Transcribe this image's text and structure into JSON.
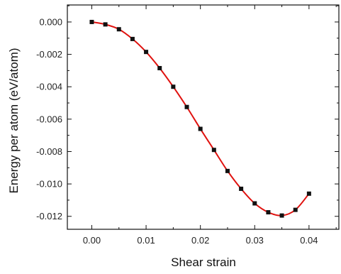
{
  "chart_data": {
    "type": "scatter",
    "title": "",
    "xlabel": "Shear strain",
    "ylabel": "Energy per atom (eV/atom)",
    "xlim": [
      -0.0045,
      0.0455
    ],
    "ylim": [
      -0.0128,
      0.00105
    ],
    "x_ticks": [
      0.0,
      0.01,
      0.02,
      0.03,
      0.04
    ],
    "x_tick_labels": [
      "0.00",
      "0.01",
      "0.02",
      "0.03",
      "0.04"
    ],
    "y_ticks": [
      0.0,
      -0.002,
      -0.004,
      -0.006,
      -0.008,
      -0.01,
      -0.012
    ],
    "y_tick_labels": [
      "0.000",
      "-0.002",
      "-0.004",
      "-0.006",
      "-0.008",
      "-0.010",
      "-0.012"
    ],
    "grid": false,
    "legend": "none",
    "series": [
      {
        "marker": "square",
        "marker_color": "#111111",
        "line_color": "#e0120f",
        "x": [
          0.0,
          0.0025,
          0.005,
          0.0075,
          0.01,
          0.0125,
          0.015,
          0.0175,
          0.02,
          0.0225,
          0.025,
          0.0275,
          0.03,
          0.0325,
          0.035,
          0.0375,
          0.04
        ],
        "y": [
          0.0,
          -0.00015,
          -0.00045,
          -0.00105,
          -0.00185,
          -0.00285,
          -0.004,
          -0.00525,
          -0.0066,
          -0.0079,
          -0.0092,
          -0.0103,
          -0.0112,
          -0.01175,
          -0.01195,
          -0.0116,
          -0.0106
        ]
      }
    ]
  }
}
